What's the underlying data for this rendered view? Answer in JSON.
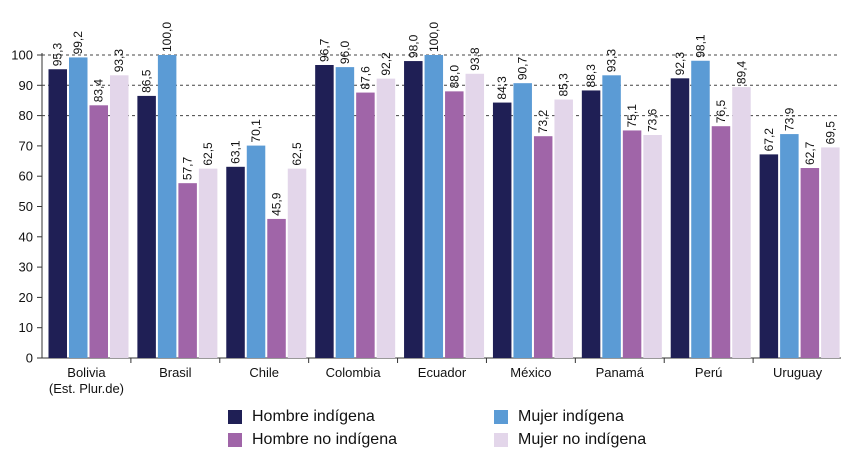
{
  "chart_data": {
    "type": "bar",
    "categories": [
      "Bolivia\n(Est. Plur.de)",
      "Brasil",
      "Chile",
      "Colombia",
      "Ecuador",
      "México",
      "Panamá",
      "Perú",
      "Uruguay"
    ],
    "series": [
      {
        "name": "Hombre indígena",
        "color": "#1f1f55",
        "values": [
          95.3,
          86.5,
          63.1,
          96.7,
          98.0,
          84.3,
          88.3,
          92.3,
          67.2
        ],
        "labels": [
          "95,3",
          "86,5",
          "63,1",
          "96,7",
          "98,0",
          "84,3",
          "88,3",
          "92,3",
          "67,2"
        ]
      },
      {
        "name": "Mujer indígena",
        "color": "#5b9bd5",
        "values": [
          99.2,
          100.0,
          70.1,
          96.0,
          100.0,
          90.7,
          93.3,
          98.1,
          73.9
        ],
        "labels": [
          "99,2",
          "100,0",
          "70,1",
          "96,0",
          "100,0",
          "90,7",
          "93,3",
          "98,1",
          "73,9"
        ]
      },
      {
        "name": "Hombre no indígena",
        "color": "#a065a8",
        "values": [
          83.4,
          57.7,
          45.9,
          87.6,
          88.0,
          73.2,
          75.1,
          76.5,
          62.7
        ],
        "labels": [
          "83,4",
          "57,7",
          "45,9",
          "87,6",
          "88,0",
          "73,2",
          "75,1",
          "76,5",
          "62,7"
        ]
      },
      {
        "name": "Mujer no indígena",
        "color": "#e3d6ea",
        "values": [
          93.3,
          62.5,
          62.5,
          92.2,
          93.8,
          85.3,
          73.6,
          89.4,
          69.5
        ],
        "labels": [
          "93,3",
          "62,5",
          "62,5",
          "92,2",
          "93,8",
          "85,3",
          "73,6",
          "89,4",
          "69,5"
        ]
      }
    ],
    "yticks": [
      "0",
      "10",
      "20",
      "30",
      "40",
      "50",
      "60",
      "70",
      "80",
      "90",
      "100"
    ],
    "ylim": [
      0,
      100
    ],
    "gridlines": [
      80,
      90,
      100
    ],
    "legend_position": "bottom"
  }
}
